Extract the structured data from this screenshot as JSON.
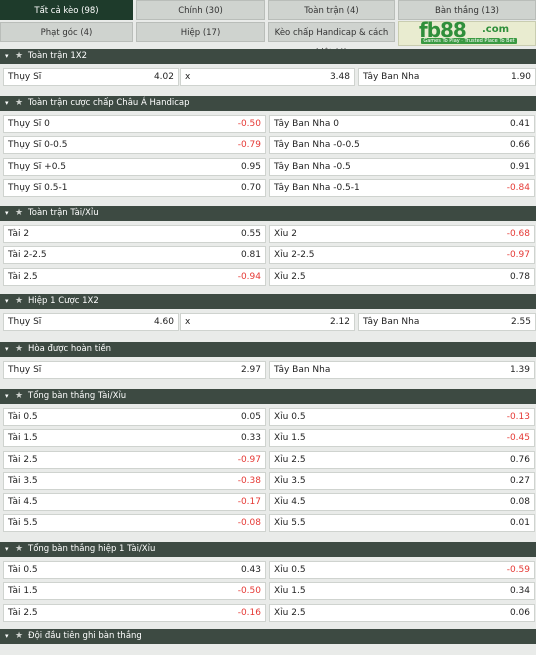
{
  "tabs": [
    {
      "label": "Tất cả kèo (98)",
      "active": true
    },
    {
      "label": "Chính (30)",
      "active": false
    },
    {
      "label": "Toàn trận (4)",
      "active": false
    },
    {
      "label": "Bàn thắng (13)",
      "active": false
    },
    {
      "label": "Phạt góc (4)",
      "active": false
    },
    {
      "label": "Hiệp (17)",
      "active": false
    },
    {
      "label": "Kèo chấp Handicap & cách biệt (4)",
      "active": false
    }
  ],
  "logo": {
    "main": "fb88",
    "suffix": ".com",
    "tagline": "Games To Play · Trusted Place To Bet"
  },
  "sections": [
    {
      "title": "Toàn trận 1X2",
      "cols": 3,
      "rows": [
        [
          {
            "name": "Thụy Sĩ",
            "value": "4.02"
          },
          {
            "name": "x",
            "value": "3.48"
          },
          {
            "name": "Tây Ban Nha",
            "value": "1.90"
          }
        ]
      ]
    },
    {
      "title": "Toàn trận cược chấp Châu Á Handicap",
      "cols": 2,
      "rows": [
        [
          {
            "name": "Thụy Sĩ 0",
            "value": "-0.50"
          },
          {
            "name": "Tây Ban Nha 0",
            "value": "0.41"
          }
        ],
        [
          {
            "name": "Thụy Sĩ 0-0.5",
            "value": "-0.79"
          },
          {
            "name": "Tây Ban Nha -0-0.5",
            "value": "0.66"
          }
        ],
        [
          {
            "name": "Thụy Sĩ +0.5",
            "value": "0.95"
          },
          {
            "name": "Tây Ban Nha -0.5",
            "value": "0.91"
          }
        ],
        [
          {
            "name": "Thụy Sĩ 0.5-1",
            "value": "0.70"
          },
          {
            "name": "Tây Ban Nha -0.5-1",
            "value": "-0.84"
          }
        ]
      ]
    },
    {
      "title": "Toàn trận Tài/Xỉu",
      "cols": 2,
      "rows": [
        [
          {
            "name": "Tài 2",
            "value": "0.55"
          },
          {
            "name": "Xỉu 2",
            "value": "-0.68"
          }
        ],
        [
          {
            "name": "Tài 2-2.5",
            "value": "0.81"
          },
          {
            "name": "Xỉu 2-2.5",
            "value": "-0.97"
          }
        ],
        [
          {
            "name": "Tài 2.5",
            "value": "-0.94"
          },
          {
            "name": "Xỉu 2.5",
            "value": "0.78"
          }
        ]
      ]
    },
    {
      "title": "Hiệp 1 Cược 1X2",
      "cols": 3,
      "rows": [
        [
          {
            "name": "Thụy Sĩ",
            "value": "4.60"
          },
          {
            "name": "x",
            "value": "2.12"
          },
          {
            "name": "Tây Ban Nha",
            "value": "2.55"
          }
        ]
      ]
    },
    {
      "title": "Hòa được hoàn tiền",
      "cols": 2,
      "rows": [
        [
          {
            "name": "Thụy Sĩ",
            "value": "2.97"
          },
          {
            "name": "Tây Ban Nha",
            "value": "1.39"
          }
        ]
      ]
    },
    {
      "title": "Tổng bàn thắng Tài/Xỉu",
      "cols": 2,
      "rows": [
        [
          {
            "name": "Tài 0.5",
            "value": "0.05"
          },
          {
            "name": "Xỉu 0.5",
            "value": "-0.13"
          }
        ],
        [
          {
            "name": "Tài 1.5",
            "value": "0.33"
          },
          {
            "name": "Xỉu 1.5",
            "value": "-0.45"
          }
        ],
        [
          {
            "name": "Tài 2.5",
            "value": "-0.97"
          },
          {
            "name": "Xỉu 2.5",
            "value": "0.76"
          }
        ],
        [
          {
            "name": "Tài 3.5",
            "value": "-0.38"
          },
          {
            "name": "Xỉu 3.5",
            "value": "0.27"
          }
        ],
        [
          {
            "name": "Tài 4.5",
            "value": "-0.17"
          },
          {
            "name": "Xỉu 4.5",
            "value": "0.08"
          }
        ],
        [
          {
            "name": "Tài 5.5",
            "value": "-0.08"
          },
          {
            "name": "Xỉu 5.5",
            "value": "0.01"
          }
        ]
      ]
    },
    {
      "title": "Tổng bàn thắng hiệp 1 Tài/Xỉu",
      "cols": 2,
      "rows": [
        [
          {
            "name": "Tài 0.5",
            "value": "0.43"
          },
          {
            "name": "Xỉu 0.5",
            "value": "-0.59"
          }
        ],
        [
          {
            "name": "Tài 1.5",
            "value": "-0.50"
          },
          {
            "name": "Xỉu 1.5",
            "value": "0.34"
          }
        ],
        [
          {
            "name": "Tài 2.5",
            "value": "-0.16"
          },
          {
            "name": "Xỉu 2.5",
            "value": "0.06"
          }
        ]
      ]
    },
    {
      "title": "Đội đầu tiên ghi bàn thắng",
      "cols": 3,
      "rows": []
    }
  ],
  "colors": {
    "header_bg": "#3d4a42",
    "active_tab": "#1e3b2b",
    "negative": "#e53935"
  },
  "icons": {
    "collapse": "chevron-down-icon",
    "favorite": "star-icon"
  }
}
